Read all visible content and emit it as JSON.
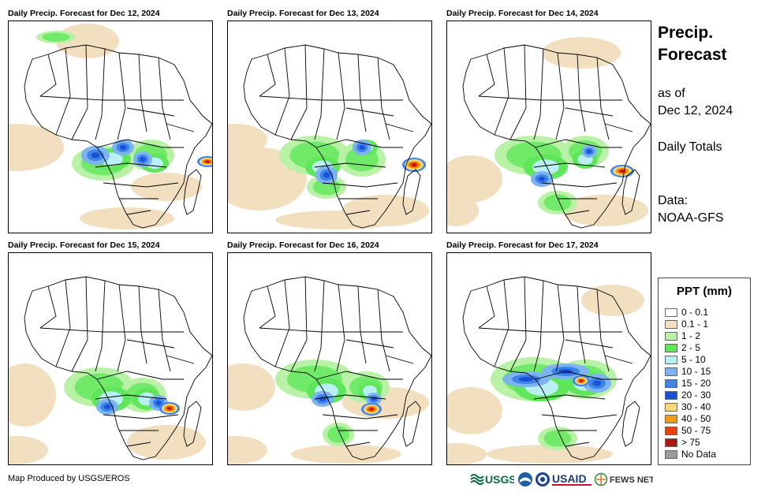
{
  "panels": [
    {
      "title": "Daily Precip. Forecast for Dec 12, 2024"
    },
    {
      "title": "Daily Precip. Forecast for Dec 13, 2024"
    },
    {
      "title": "Daily Precip. Forecast for Dec 14, 2024"
    },
    {
      "title": "Daily Precip. Forecast for Dec 15, 2024"
    },
    {
      "title": "Daily Precip. Forecast for Dec 16, 2024"
    },
    {
      "title": "Daily Precip. Forecast for Dec 17, 2024"
    }
  ],
  "sidebar": {
    "title_line1": "Precip.",
    "title_line2": "Forecast",
    "asof_line1": "as of",
    "asof_line2": "Dec 12, 2024",
    "totals": "Daily Totals",
    "data_line1": "Data:",
    "data_line2": "NOAA-GFS"
  },
  "legend": {
    "title": "PPT (mm)",
    "items": [
      {
        "label": "0 - 0.1",
        "color": "#ffffff"
      },
      {
        "label": "0.1 - 1",
        "color": "#f2dfc0"
      },
      {
        "label": "1 - 2",
        "color": "#b9f2a6"
      },
      {
        "label": "2 - 5",
        "color": "#5fe65a"
      },
      {
        "label": "5 - 10",
        "color": "#b8f0f3"
      },
      {
        "label": "10 - 15",
        "color": "#7cb3f0"
      },
      {
        "label": "15 - 20",
        "color": "#3c84e8"
      },
      {
        "label": "20 - 30",
        "color": "#1b4fd6"
      },
      {
        "label": "30 - 40",
        "color": "#f7d87a"
      },
      {
        "label": "40 - 50",
        "color": "#f39c12"
      },
      {
        "label": "50 - 75",
        "color": "#e8410c"
      },
      {
        "label": "> 75",
        "color": "#b01515"
      },
      {
        "label": "No Data",
        "color": "#9a9a9a"
      }
    ]
  },
  "credit": "Map Produced by USGS/EROS",
  "logos": {
    "usgs": "USGS",
    "usaid": "USAID",
    "fews": "FEWS NET"
  }
}
